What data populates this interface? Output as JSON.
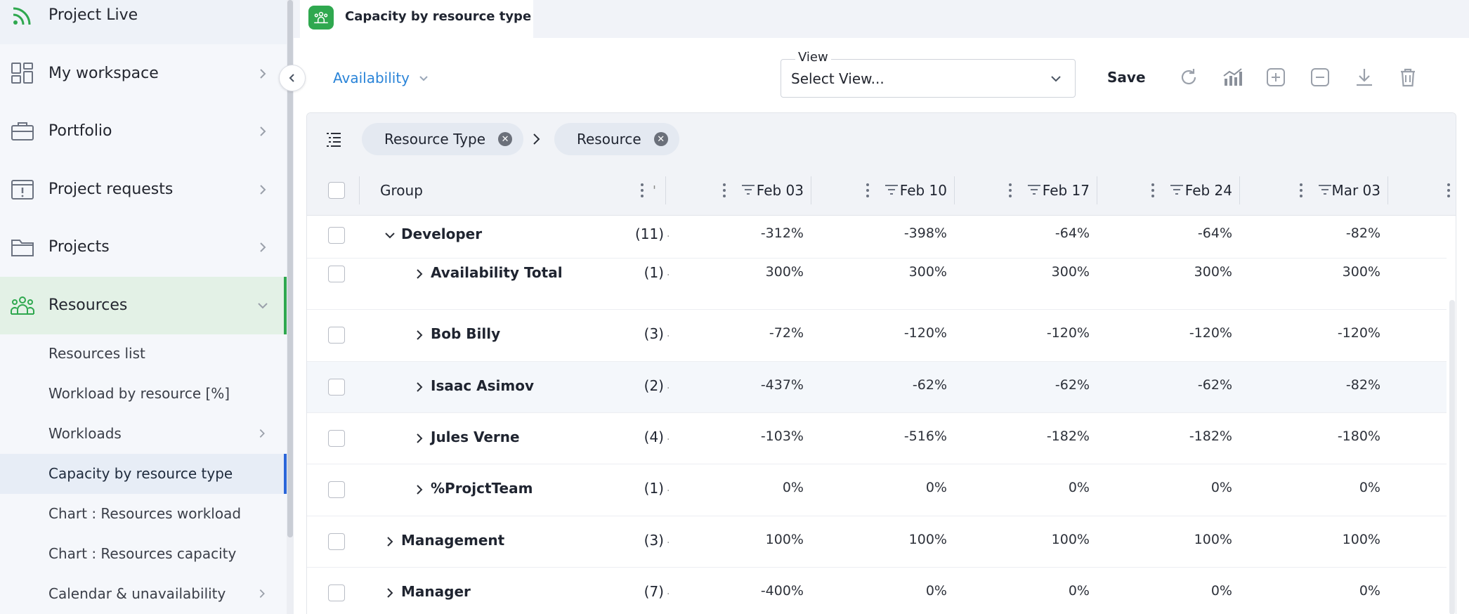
{
  "sidebar": {
    "items": [
      {
        "label": "Project Live",
        "icon": "rss-icon"
      },
      {
        "label": "My workspace",
        "icon": "dashboard-icon"
      },
      {
        "label": "Portfolio",
        "icon": "briefcase-icon"
      },
      {
        "label": "Project requests",
        "icon": "request-icon"
      },
      {
        "label": "Projects",
        "icon": "folder-icon"
      },
      {
        "label": "Resources",
        "icon": "people-icon"
      }
    ],
    "subitems": [
      {
        "label": "Resources list"
      },
      {
        "label": "Workload by resource [%]"
      },
      {
        "label": "Workloads"
      },
      {
        "label": "Capacity by resource type"
      },
      {
        "label": "Chart : Resources workload"
      },
      {
        "label": "Chart : Resources capacity"
      },
      {
        "label": "Calendar & unavailability"
      }
    ]
  },
  "tab": {
    "title": "Capacity by resource type"
  },
  "toolbar": {
    "mode": "Availability",
    "view_label": "View",
    "view_value": "Select View...",
    "save": "Save"
  },
  "groupby": {
    "chips": [
      "Resource Type",
      "Resource"
    ]
  },
  "grid": {
    "group_header": "Group",
    "columns": [
      "Feb 03",
      "Feb 10",
      "Feb 17",
      "Feb 24",
      "Mar 03"
    ],
    "rows": [
      {
        "name": "Developer",
        "count": "(11)",
        "values": [
          "-312%",
          "-398%",
          "-64%",
          "-64%",
          "-82%"
        ]
      },
      {
        "name": "Availability Total",
        "count": "(1)",
        "values": [
          "300%",
          "300%",
          "300%",
          "300%",
          "300%"
        ]
      },
      {
        "name": "Bob Billy",
        "count": "(3)",
        "values": [
          "-72%",
          "-120%",
          "-120%",
          "-120%",
          "-120%"
        ]
      },
      {
        "name": "Isaac Asimov",
        "count": "(2)",
        "values": [
          "-437%",
          "-62%",
          "-62%",
          "-62%",
          "-82%"
        ]
      },
      {
        "name": "Jules Verne",
        "count": "(4)",
        "values": [
          "-103%",
          "-516%",
          "-182%",
          "-182%",
          "-180%"
        ]
      },
      {
        "name": "%ProjctTeam",
        "count": "(1)",
        "values": [
          "0%",
          "0%",
          "0%",
          "0%",
          "0%"
        ]
      },
      {
        "name": "Management",
        "count": "(3)",
        "values": [
          "100%",
          "100%",
          "100%",
          "100%",
          "100%"
        ]
      },
      {
        "name": "Manager",
        "count": "(7)",
        "values": [
          "-400%",
          "0%",
          "0%",
          "0%",
          "0%"
        ]
      }
    ]
  },
  "colors": {
    "accent_green": "#2fa84f",
    "accent_blue": "#2a84d8",
    "selected_border": "#2b66d9"
  }
}
